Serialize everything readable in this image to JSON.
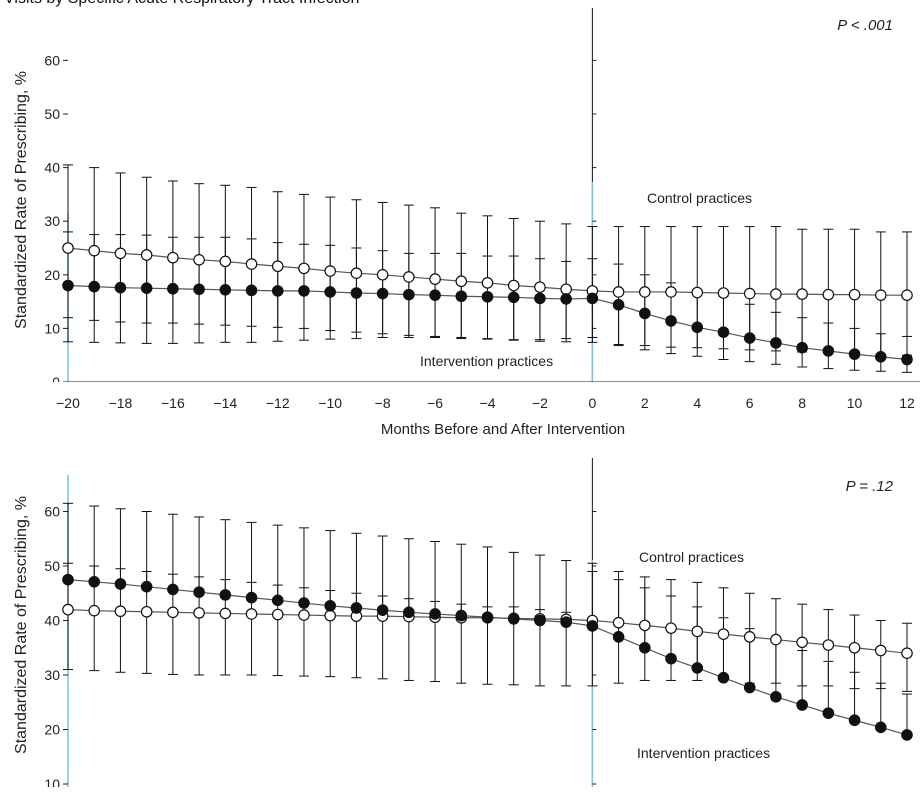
{
  "figure": {
    "title": "Visits by Specific Acute Respiratory Tract Infection"
  },
  "chart_data": [
    {
      "type": "line",
      "ylabel": "Standardized Rate of Prescribing, %",
      "xlabel": "Months Before and After Intervention",
      "xlim": [
        -20,
        12
      ],
      "ylim": [
        0,
        65
      ],
      "x_ticks": [
        "−20",
        "−18",
        "−16",
        "−14",
        "−12",
        "−10",
        "−8",
        "−6",
        "−4",
        "−2",
        "0",
        "2",
        "4",
        "6",
        "8",
        "10",
        "12"
      ],
      "y_ticks": [
        "0",
        "10",
        "20",
        "30",
        "40",
        "50",
        "60"
      ],
      "annotation": "P < .001",
      "label_control": "Control practices",
      "label_intervention": "Intervention practices",
      "x": [
        -20,
        -19,
        -18,
        -17,
        -16,
        -15,
        -14,
        -13,
        -12,
        -11,
        -10,
        -9,
        -8,
        -7,
        -6,
        -5,
        -4,
        -3,
        -2,
        -1,
        0,
        1,
        2,
        3,
        4,
        5,
        6,
        7,
        8,
        9,
        10,
        11,
        12
      ],
      "series": [
        {
          "marker": "open",
          "values": [
            25.0,
            24.5,
            24.0,
            23.7,
            23.2,
            22.8,
            22.5,
            22.0,
            21.6,
            21.2,
            20.7,
            20.3,
            20.0,
            19.6,
            19.2,
            18.8,
            18.5,
            18.0,
            17.7,
            17.3,
            17.0,
            16.8,
            16.8,
            16.8,
            16.7,
            16.6,
            16.5,
            16.4,
            16.4,
            16.3,
            16.3,
            16.2,
            16.2
          ],
          "upper": [
            40.5,
            40.0,
            39.0,
            38.2,
            37.5,
            37.0,
            36.7,
            36.3,
            35.5,
            35.0,
            34.5,
            34.0,
            33.5,
            33.0,
            32.5,
            31.5,
            31.0,
            30.5,
            30.0,
            29.5,
            29.0,
            29.0,
            29.0,
            29.0,
            29.0,
            29.0,
            29.0,
            29.0,
            28.5,
            28.5,
            28.5,
            28.0,
            28.0
          ],
          "lower": [
            12.0,
            11.5,
            11.2,
            11.0,
            11.0,
            10.8,
            10.6,
            10.4,
            10.2,
            10.0,
            9.6,
            9.3,
            9.0,
            8.7,
            8.5,
            8.3,
            8.1,
            7.8,
            7.6,
            7.5,
            7.4,
            7.0,
            6.8,
            6.5,
            6.4,
            6.2,
            6.0,
            5.8,
            5.6,
            5.4,
            5.2,
            5.0,
            5.0
          ]
        },
        {
          "marker": "filled",
          "values": [
            18.0,
            17.8,
            17.6,
            17.5,
            17.4,
            17.3,
            17.2,
            17.1,
            17.0,
            17.0,
            16.8,
            16.6,
            16.5,
            16.3,
            16.2,
            16.0,
            15.9,
            15.8,
            15.6,
            15.5,
            15.6,
            14.4,
            12.8,
            11.4,
            10.2,
            9.3,
            8.2,
            7.3,
            6.4,
            5.8,
            5.2,
            4.7,
            4.2
          ],
          "upper": [
            28.0,
            27.5,
            27.5,
            27.4,
            27.0,
            27.0,
            27.0,
            26.7,
            26.0,
            25.7,
            25.5,
            25.0,
            24.5,
            24.0,
            24.0,
            24.0,
            23.5,
            23.5,
            23.0,
            22.5,
            23.0,
            22.0,
            20.0,
            18.5,
            17.0,
            16.0,
            14.5,
            13.0,
            12.0,
            11.0,
            10.0,
            9.0,
            8.5
          ],
          "lower": [
            7.5,
            7.4,
            7.3,
            7.2,
            7.2,
            7.3,
            7.4,
            7.4,
            7.6,
            7.8,
            8.0,
            8.1,
            8.3,
            8.3,
            8.3,
            8.1,
            8.0,
            7.9,
            7.9,
            8.1,
            8.3,
            6.8,
            6.0,
            5.3,
            4.8,
            4.2,
            3.8,
            3.3,
            2.8,
            2.5,
            2.2,
            2.0,
            1.8
          ]
        }
      ]
    },
    {
      "type": "line",
      "ylabel": "Standardized Rate of Prescribing, %",
      "xlim": [
        -20,
        12
      ],
      "ylim": [
        10,
        70
      ],
      "y_ticks": [
        "10",
        "20",
        "30",
        "40",
        "50",
        "60"
      ],
      "annotation": "P = .12",
      "label_control": "Control practices",
      "label_intervention": "Intervention practices",
      "x": [
        -20,
        -19,
        -18,
        -17,
        -16,
        -15,
        -14,
        -13,
        -12,
        -11,
        -10,
        -9,
        -8,
        -7,
        -6,
        -5,
        -4,
        -3,
        -2,
        -1,
        0,
        1,
        2,
        3,
        4,
        5,
        6,
        7,
        8,
        9,
        10,
        11,
        12
      ],
      "series": [
        {
          "marker": "open",
          "values": [
            42.0,
            41.8,
            41.7,
            41.6,
            41.5,
            41.4,
            41.3,
            41.2,
            41.1,
            41.0,
            40.9,
            40.8,
            40.8,
            40.7,
            40.6,
            40.5,
            40.5,
            40.4,
            40.3,
            40.2,
            40.0,
            39.6,
            39.1,
            38.6,
            38.0,
            37.5,
            37.0,
            36.5,
            36.0,
            35.5,
            35.0,
            34.5,
            34.0
          ],
          "upper": [
            61.5,
            61.0,
            60.5,
            60.0,
            59.5,
            59.0,
            58.5,
            58.0,
            57.5,
            57.0,
            56.5,
            56.0,
            55.5,
            55.0,
            54.5,
            54.0,
            53.5,
            52.5,
            52.0,
            51.0,
            50.5,
            49.0,
            48.0,
            47.5,
            47.0,
            46.0,
            45.0,
            44.0,
            43.0,
            42.0,
            41.0,
            40.0,
            39.5
          ],
          "lower": [
            31.0,
            30.8,
            30.5,
            30.3,
            30.1,
            30.0,
            30.0,
            30.0,
            29.9,
            29.8,
            29.7,
            29.5,
            29.3,
            29.0,
            28.8,
            28.5,
            28.3,
            28.2,
            28.0,
            28.0,
            28.0,
            28.5,
            29.0,
            29.0,
            29.0,
            29.0,
            28.5,
            28.5,
            28.0,
            28.0,
            27.5,
            27.5,
            27.0
          ]
        },
        {
          "marker": "filled",
          "values": [
            47.5,
            47.1,
            46.7,
            46.2,
            45.7,
            45.2,
            44.7,
            44.2,
            43.7,
            43.2,
            42.7,
            42.3,
            41.9,
            41.5,
            41.2,
            40.9,
            40.6,
            40.3,
            40.0,
            39.7,
            39.0,
            37.0,
            35.0,
            33.0,
            31.3,
            29.5,
            27.7,
            26.0,
            24.5,
            23.0,
            21.7,
            20.4,
            19.0
          ],
          "upper": [
            50.5,
            50.0,
            49.5,
            49.0,
            48.5,
            48.0,
            47.5,
            47.0,
            46.5,
            46.0,
            45.5,
            45.0,
            44.5,
            44.0,
            43.5,
            43.0,
            42.5,
            42.5,
            42.0,
            41.5,
            49.0,
            47.5,
            46.0,
            44.5,
            42.5,
            40.5,
            38.5,
            36.5,
            34.5,
            32.5,
            30.5,
            28.5,
            26.5
          ]
        }
      ]
    }
  ]
}
